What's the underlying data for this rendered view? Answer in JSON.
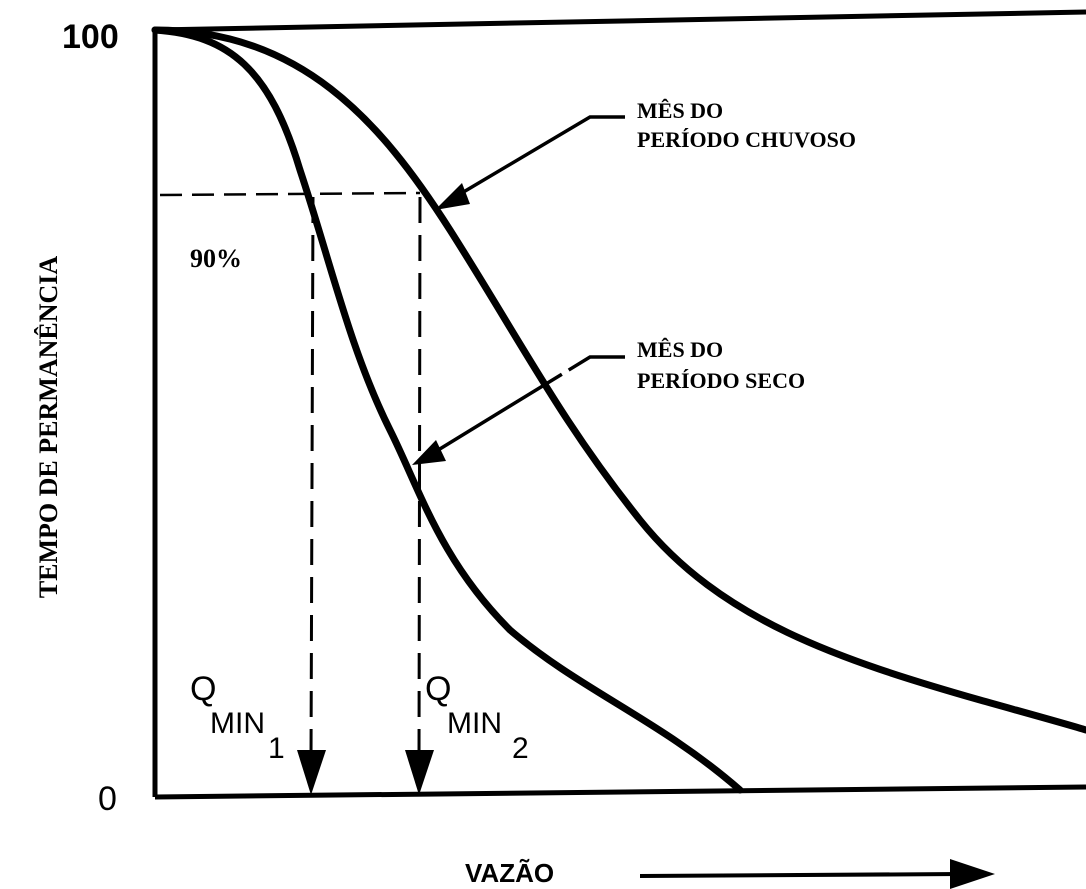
{
  "axes": {
    "y_label": "TEMPO DE PERMANÊNCIA",
    "x_label": "VAZÃO",
    "y_top_tick": "100",
    "y_bottom_tick": "0"
  },
  "annotations": {
    "percent": "90%",
    "wet_line1": "MÊS DO",
    "wet_line2": "PERÍODO CHUVOSO",
    "dry_line1": "MÊS DO",
    "dry_line2": "PERÍODO SECO",
    "q1_main": "Q",
    "q1_sub": "MIN",
    "q1_index": "1",
    "q2_main": "Q",
    "q2_sub": "MIN",
    "q2_index": "2"
  },
  "curves": [
    {
      "id": "dry",
      "color": "#000000"
    },
    {
      "id": "wet",
      "color": "#000000"
    }
  ]
}
